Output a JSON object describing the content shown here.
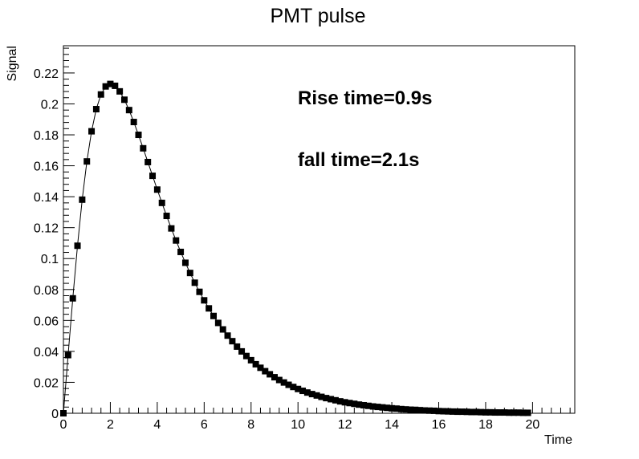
{
  "chart_data": {
    "type": "scatter",
    "title": "PMT pulse",
    "xlabel": "Time",
    "ylabel": "Signal",
    "xlim": [
      0,
      21.8
    ],
    "ylim": [
      0,
      0.2376
    ],
    "x_ticks": [
      0,
      2,
      4,
      6,
      8,
      10,
      12,
      14,
      16,
      18,
      20
    ],
    "y_ticks": [
      0,
      0.02,
      0.04,
      0.06,
      0.08,
      0.1,
      0.12,
      0.14,
      0.16,
      0.18,
      0.2,
      0.22
    ],
    "x_tick_labels": [
      "0",
      "2",
      "4",
      "6",
      "8",
      "10",
      "12",
      "14",
      "16",
      "18",
      "20"
    ],
    "y_tick_labels": [
      "0",
      "0.02",
      "0.04",
      "0.06",
      "0.08",
      "0.1",
      "0.12",
      "0.14",
      "0.16",
      "0.18",
      "0.2",
      "0.22"
    ],
    "annotations": [
      "Rise time=0.9s",
      "fall time=2.1s"
    ],
    "grid": false,
    "marker": "square",
    "connect_points": true,
    "color": "#000000",
    "series": [
      {
        "x": [
          0,
          0.2,
          0.4,
          0.6,
          0.8,
          1.0,
          1.2,
          1.4,
          1.6,
          1.8,
          2.0,
          2.2,
          2.4,
          2.6,
          2.8,
          3.0,
          3.2,
          3.4,
          3.6,
          3.8,
          4.0,
          4.2,
          4.4,
          4.6,
          4.8,
          5.0,
          5.2,
          5.4,
          5.6,
          5.8,
          6.0,
          6.2,
          6.4,
          6.6,
          6.8,
          7.0,
          7.2,
          7.4,
          7.6,
          7.8,
          8.0,
          8.2,
          8.4,
          8.6,
          8.8,
          9.0,
          9.2,
          9.4,
          9.6,
          9.8,
          10.0,
          10.2,
          10.4,
          10.6,
          10.8,
          11.0,
          11.2,
          11.4,
          11.6,
          11.8,
          12.0,
          12.2,
          12.4,
          12.6,
          12.8,
          13.0,
          13.2,
          13.4,
          13.6,
          13.8,
          14.0,
          14.2,
          14.4,
          14.6,
          14.8,
          15.0,
          15.2,
          15.4,
          15.6,
          15.8,
          16.0,
          16.2,
          16.4,
          16.6,
          16.8,
          17.0,
          17.2,
          17.4,
          17.6,
          17.8,
          18.0,
          18.2,
          18.4,
          18.6,
          18.8,
          19.0,
          19.2,
          19.4,
          19.6,
          19.8
        ],
        "y": [
          0.0,
          0.0376,
          0.0743,
          0.1083,
          0.1381,
          0.1628,
          0.1823,
          0.1966,
          0.2061,
          0.2113,
          0.2129,
          0.2117,
          0.2081,
          0.2027,
          0.196,
          0.1883,
          0.18,
          0.1713,
          0.1624,
          0.1535,
          0.1446,
          0.136,
          0.1276,
          0.1195,
          0.1117,
          0.1043,
          0.0973,
          0.0907,
          0.0844,
          0.0785,
          0.073,
          0.0678,
          0.0629,
          0.0584,
          0.0542,
          0.0502,
          0.0466,
          0.0431,
          0.04,
          0.037,
          0.0343,
          0.0317,
          0.0294,
          0.0272,
          0.0252,
          0.0233,
          0.0215,
          0.0199,
          0.0184,
          0.017,
          0.0157,
          0.0145,
          0.0134,
          0.0124,
          0.0115,
          0.0106,
          0.0098,
          0.0091,
          0.0084,
          0.0077,
          0.0071,
          0.0066,
          0.0061,
          0.0056,
          0.0052,
          0.0048,
          0.0044,
          0.0041,
          0.0038,
          0.0035,
          0.0032,
          0.003,
          0.0027,
          0.0025,
          0.0023,
          0.0022,
          0.002,
          0.0018,
          0.0017,
          0.0016,
          0.0014,
          0.0013,
          0.0012,
          0.0011,
          0.001,
          0.001,
          0.0009,
          0.0008,
          0.0008,
          0.0007,
          0.0006,
          0.0006,
          0.0005,
          0.0005,
          0.0005,
          0.0004,
          0.0004,
          0.0004,
          0.0003,
          0.0003
        ]
      }
    ]
  }
}
